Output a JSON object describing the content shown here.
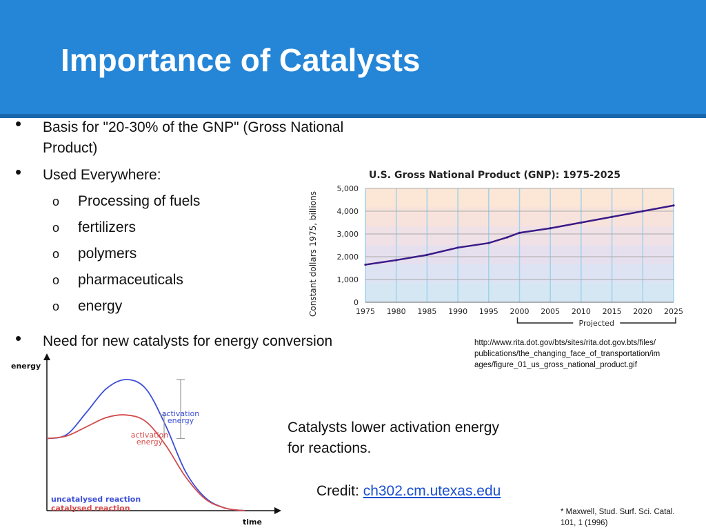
{
  "slide": {
    "title": "Importance of Catalysts"
  },
  "bullets": [
    {
      "text": "Basis for \"20-30% of the GNP\" (Gross National",
      "text2": "Product)"
    },
    {
      "text": "Used Everywhere:"
    },
    {
      "text": "Need for new catalysts for energy conversion"
    }
  ],
  "sub_items": [
    "Processing of fuels",
    "fertilizers",
    "polymers",
    "pharmaceuticals",
    "energy"
  ],
  "sub_marker": "o",
  "bullet_marker": "•",
  "caption": {
    "line1": "Catalysts lower activation energy",
    "line2": "for reactions."
  },
  "credit": {
    "label": "Credit:",
    "link": "ch302.cm.utexas.edu"
  },
  "source_url": {
    "line1": "http://www.rita.dot.gov/bts/sites/rita.dot.gov.bts/files/",
    "line2": "publications/the_changing_face_of_transportation/im",
    "line3": "ages/figure_01_us_gross_national_product.gif"
  },
  "reference": {
    "line1": "* Maxwell, Stud. Surf. Sci. Catal.",
    "line2": "101, 1 (1996)"
  },
  "colors": {
    "header": "#2585d6",
    "gnp_line": "#3a1a88",
    "uncatalysed": "#3b4ed8",
    "catalysed": "#d44a4a"
  },
  "chart_data": [
    {
      "type": "line",
      "title": "U.S. Gross National Product (GNP): 1975-2025",
      "ylabel": "Constant dollars 1975, billions",
      "xlabel": "",
      "xlim": [
        1975,
        2025
      ],
      "ylim": [
        0,
        5000
      ],
      "yticks": [
        "0",
        "1,000",
        "2,000",
        "3,000",
        "4,000",
        "5,000"
      ],
      "xticks": [
        "1975",
        "1980",
        "1985",
        "1990",
        "1995",
        "2000",
        "2005",
        "2010",
        "2015",
        "2020",
        "2025"
      ],
      "annotation": "Projected",
      "annotation_range": [
        2000,
        2025
      ],
      "grid": true,
      "series": [
        {
          "x": [
            1975,
            1980,
            1985,
            1990,
            1995,
            1998,
            2000,
            2005,
            2010,
            2015,
            2020,
            2025
          ],
          "values": [
            1650,
            1850,
            2080,
            2400,
            2600,
            2850,
            3050,
            3250,
            3500,
            3750,
            4000,
            4250
          ]
        }
      ]
    },
    {
      "type": "line",
      "title": "",
      "xlabel": "time",
      "ylabel": "energy",
      "annotations": [
        "activation energy",
        "activation energy"
      ],
      "series": [
        {
          "name": "uncatalysed reaction",
          "x": [
            0,
            0.1,
            0.2,
            0.3,
            0.4,
            0.5,
            0.6,
            0.7,
            0.8,
            0.9,
            1.0
          ],
          "values": [
            0.55,
            0.58,
            0.75,
            0.93,
            1.0,
            0.93,
            0.65,
            0.3,
            0.1,
            0.02,
            0.0
          ]
        },
        {
          "name": "catalysed reaction",
          "x": [
            0,
            0.1,
            0.2,
            0.3,
            0.4,
            0.5,
            0.6,
            0.7,
            0.8,
            0.9,
            1.0
          ],
          "values": [
            0.55,
            0.57,
            0.64,
            0.71,
            0.73,
            0.68,
            0.5,
            0.26,
            0.09,
            0.02,
            0.0
          ]
        }
      ]
    }
  ]
}
